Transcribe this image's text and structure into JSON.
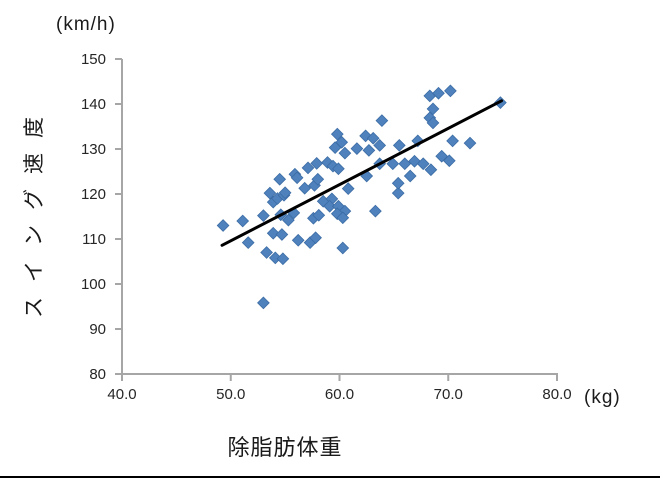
{
  "chart": {
    "y_unit_label": "(km/h)",
    "x_unit_label": "(kg)",
    "x_axis_title": "除脂肪体重",
    "y_axis_title": "スイング速度"
  },
  "chart_data": {
    "type": "scatter",
    "title": "",
    "xlabel": "除脂肪体重",
    "ylabel": "スイング速度",
    "x_unit": "kg",
    "y_unit": "km/h",
    "xlim": [
      40.0,
      80.0
    ],
    "ylim": [
      80,
      150
    ],
    "grid": false,
    "legend_position": "none",
    "marker_shape": "diamond",
    "marker_color": "#4F81BD",
    "marker_edge_color": "#3C6DA5",
    "axis_color": "#A6A6A6",
    "tick_label_color": "#262626",
    "x_tick_values": [
      40,
      50,
      60,
      70,
      80
    ],
    "x_tick_labels": [
      "40.0",
      "50.0",
      "60.0",
      "70.0",
      "80.0"
    ],
    "y_tick_values": [
      80,
      90,
      100,
      110,
      120,
      130,
      140,
      150
    ],
    "y_tick_labels": [
      "80",
      "90",
      "100",
      "110",
      "120",
      "130",
      "140",
      "150"
    ],
    "trendline": {
      "type": "linear",
      "color": "#000000",
      "x_start": 49.2,
      "y_start": 108.6,
      "x_end": 74.9,
      "y_end": 140.7
    },
    "points": [
      [
        49.3,
        113.0
      ],
      [
        51.1,
        114.0
      ],
      [
        51.6,
        109.2
      ],
      [
        53.0,
        115.2
      ],
      [
        53.3,
        107.0
      ],
      [
        53.6,
        120.2
      ],
      [
        53.9,
        118.2
      ],
      [
        54.3,
        119.0
      ],
      [
        53.9,
        111.3
      ],
      [
        54.7,
        111.0
      ],
      [
        54.1,
        105.8
      ],
      [
        54.8,
        105.6
      ],
      [
        54.6,
        115.4
      ],
      [
        55.3,
        114.2
      ],
      [
        55.8,
        115.8
      ],
      [
        53.0,
        95.8
      ],
      [
        54.9,
        119.7
      ],
      [
        54.5,
        123.3
      ],
      [
        55.0,
        120.3
      ],
      [
        55.9,
        124.4
      ],
      [
        56.1,
        123.6
      ],
      [
        56.2,
        109.7
      ],
      [
        57.3,
        109.2
      ],
      [
        57.8,
        110.3
      ],
      [
        57.6,
        114.6
      ],
      [
        58.1,
        115.3
      ],
      [
        56.8,
        121.3
      ],
      [
        57.7,
        121.9
      ],
      [
        57.1,
        125.8
      ],
      [
        57.9,
        126.8
      ],
      [
        58.9,
        127.0
      ],
      [
        58.0,
        123.3
      ],
      [
        58.5,
        118.4
      ],
      [
        59.3,
        118.9
      ],
      [
        59.1,
        117.3
      ],
      [
        59.9,
        117.3
      ],
      [
        60.5,
        116.2
      ],
      [
        59.8,
        115.6
      ],
      [
        60.3,
        114.7
      ],
      [
        60.3,
        108.0
      ],
      [
        59.4,
        126.2
      ],
      [
        59.9,
        125.6
      ],
      [
        59.6,
        130.3
      ],
      [
        60.5,
        129.1
      ],
      [
        59.8,
        133.3
      ],
      [
        60.2,
        131.5
      ],
      [
        60.8,
        121.2
      ],
      [
        61.6,
        130.1
      ],
      [
        62.7,
        129.7
      ],
      [
        62.4,
        132.9
      ],
      [
        63.1,
        132.4
      ],
      [
        63.9,
        136.3
      ],
      [
        63.7,
        130.8
      ],
      [
        62.5,
        124.0
      ],
      [
        63.7,
        126.7
      ],
      [
        63.3,
        116.2
      ],
      [
        65.4,
        120.2
      ],
      [
        65.4,
        122.4
      ],
      [
        64.9,
        126.7
      ],
      [
        66.0,
        126.7
      ],
      [
        65.5,
        130.8
      ],
      [
        66.5,
        124.0
      ],
      [
        66.9,
        127.3
      ],
      [
        67.7,
        126.7
      ],
      [
        68.4,
        125.4
      ],
      [
        69.4,
        128.4
      ],
      [
        70.1,
        127.4
      ],
      [
        67.2,
        131.8
      ],
      [
        70.4,
        131.8
      ],
      [
        72.0,
        131.3
      ],
      [
        68.3,
        136.9
      ],
      [
        68.6,
        135.8
      ],
      [
        68.6,
        138.9
      ],
      [
        68.3,
        141.8
      ],
      [
        69.1,
        142.4
      ],
      [
        70.2,
        142.9
      ],
      [
        74.8,
        140.3
      ]
    ]
  }
}
